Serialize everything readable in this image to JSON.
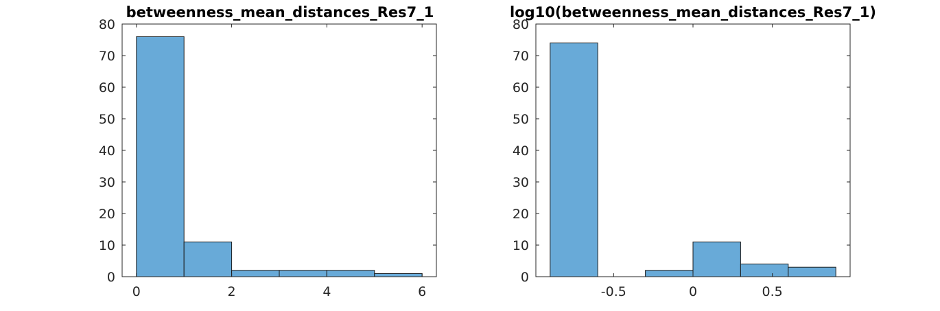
{
  "figure": {
    "background": "#ffffff"
  },
  "chart_data": [
    {
      "type": "bar",
      "title": "betweenness_mean_distances_Res7_1",
      "bar_color": "#68aad8",
      "bins": [
        {
          "x0": 0,
          "x1": 1,
          "count": 76
        },
        {
          "x0": 1,
          "x1": 2,
          "count": 11
        },
        {
          "x0": 2,
          "x1": 3,
          "count": 2
        },
        {
          "x0": 3,
          "x1": 4,
          "count": 2
        },
        {
          "x0": 4,
          "x1": 5,
          "count": 2
        },
        {
          "x0": 5,
          "x1": 6,
          "count": 1
        }
      ],
      "xlim": [
        -0.3,
        6.3
      ],
      "ylim": [
        0,
        80
      ],
      "xticks": [
        0,
        2,
        4,
        6
      ],
      "yticks": [
        0,
        10,
        20,
        30,
        40,
        50,
        60,
        70,
        80
      ],
      "grid": false
    },
    {
      "type": "bar",
      "title": "log10(betweenness_mean_distances_Res7_1)",
      "bar_color": "#68aad8",
      "bins": [
        {
          "x0": -0.9,
          "x1": -0.6,
          "count": 74
        },
        {
          "x0": -0.6,
          "x1": -0.3,
          "count": 0
        },
        {
          "x0": -0.3,
          "x1": 0.0,
          "count": 2
        },
        {
          "x0": 0.0,
          "x1": 0.3,
          "count": 11
        },
        {
          "x0": 0.3,
          "x1": 0.6,
          "count": 4
        },
        {
          "x0": 0.6,
          "x1": 0.9,
          "count": 3
        }
      ],
      "xlim": [
        -0.99,
        0.99
      ],
      "ylim": [
        0,
        80
      ],
      "xticks": [
        -0.5,
        0,
        0.5
      ],
      "yticks": [
        0,
        10,
        20,
        30,
        40,
        50,
        60,
        70,
        80
      ],
      "grid": false
    }
  ]
}
